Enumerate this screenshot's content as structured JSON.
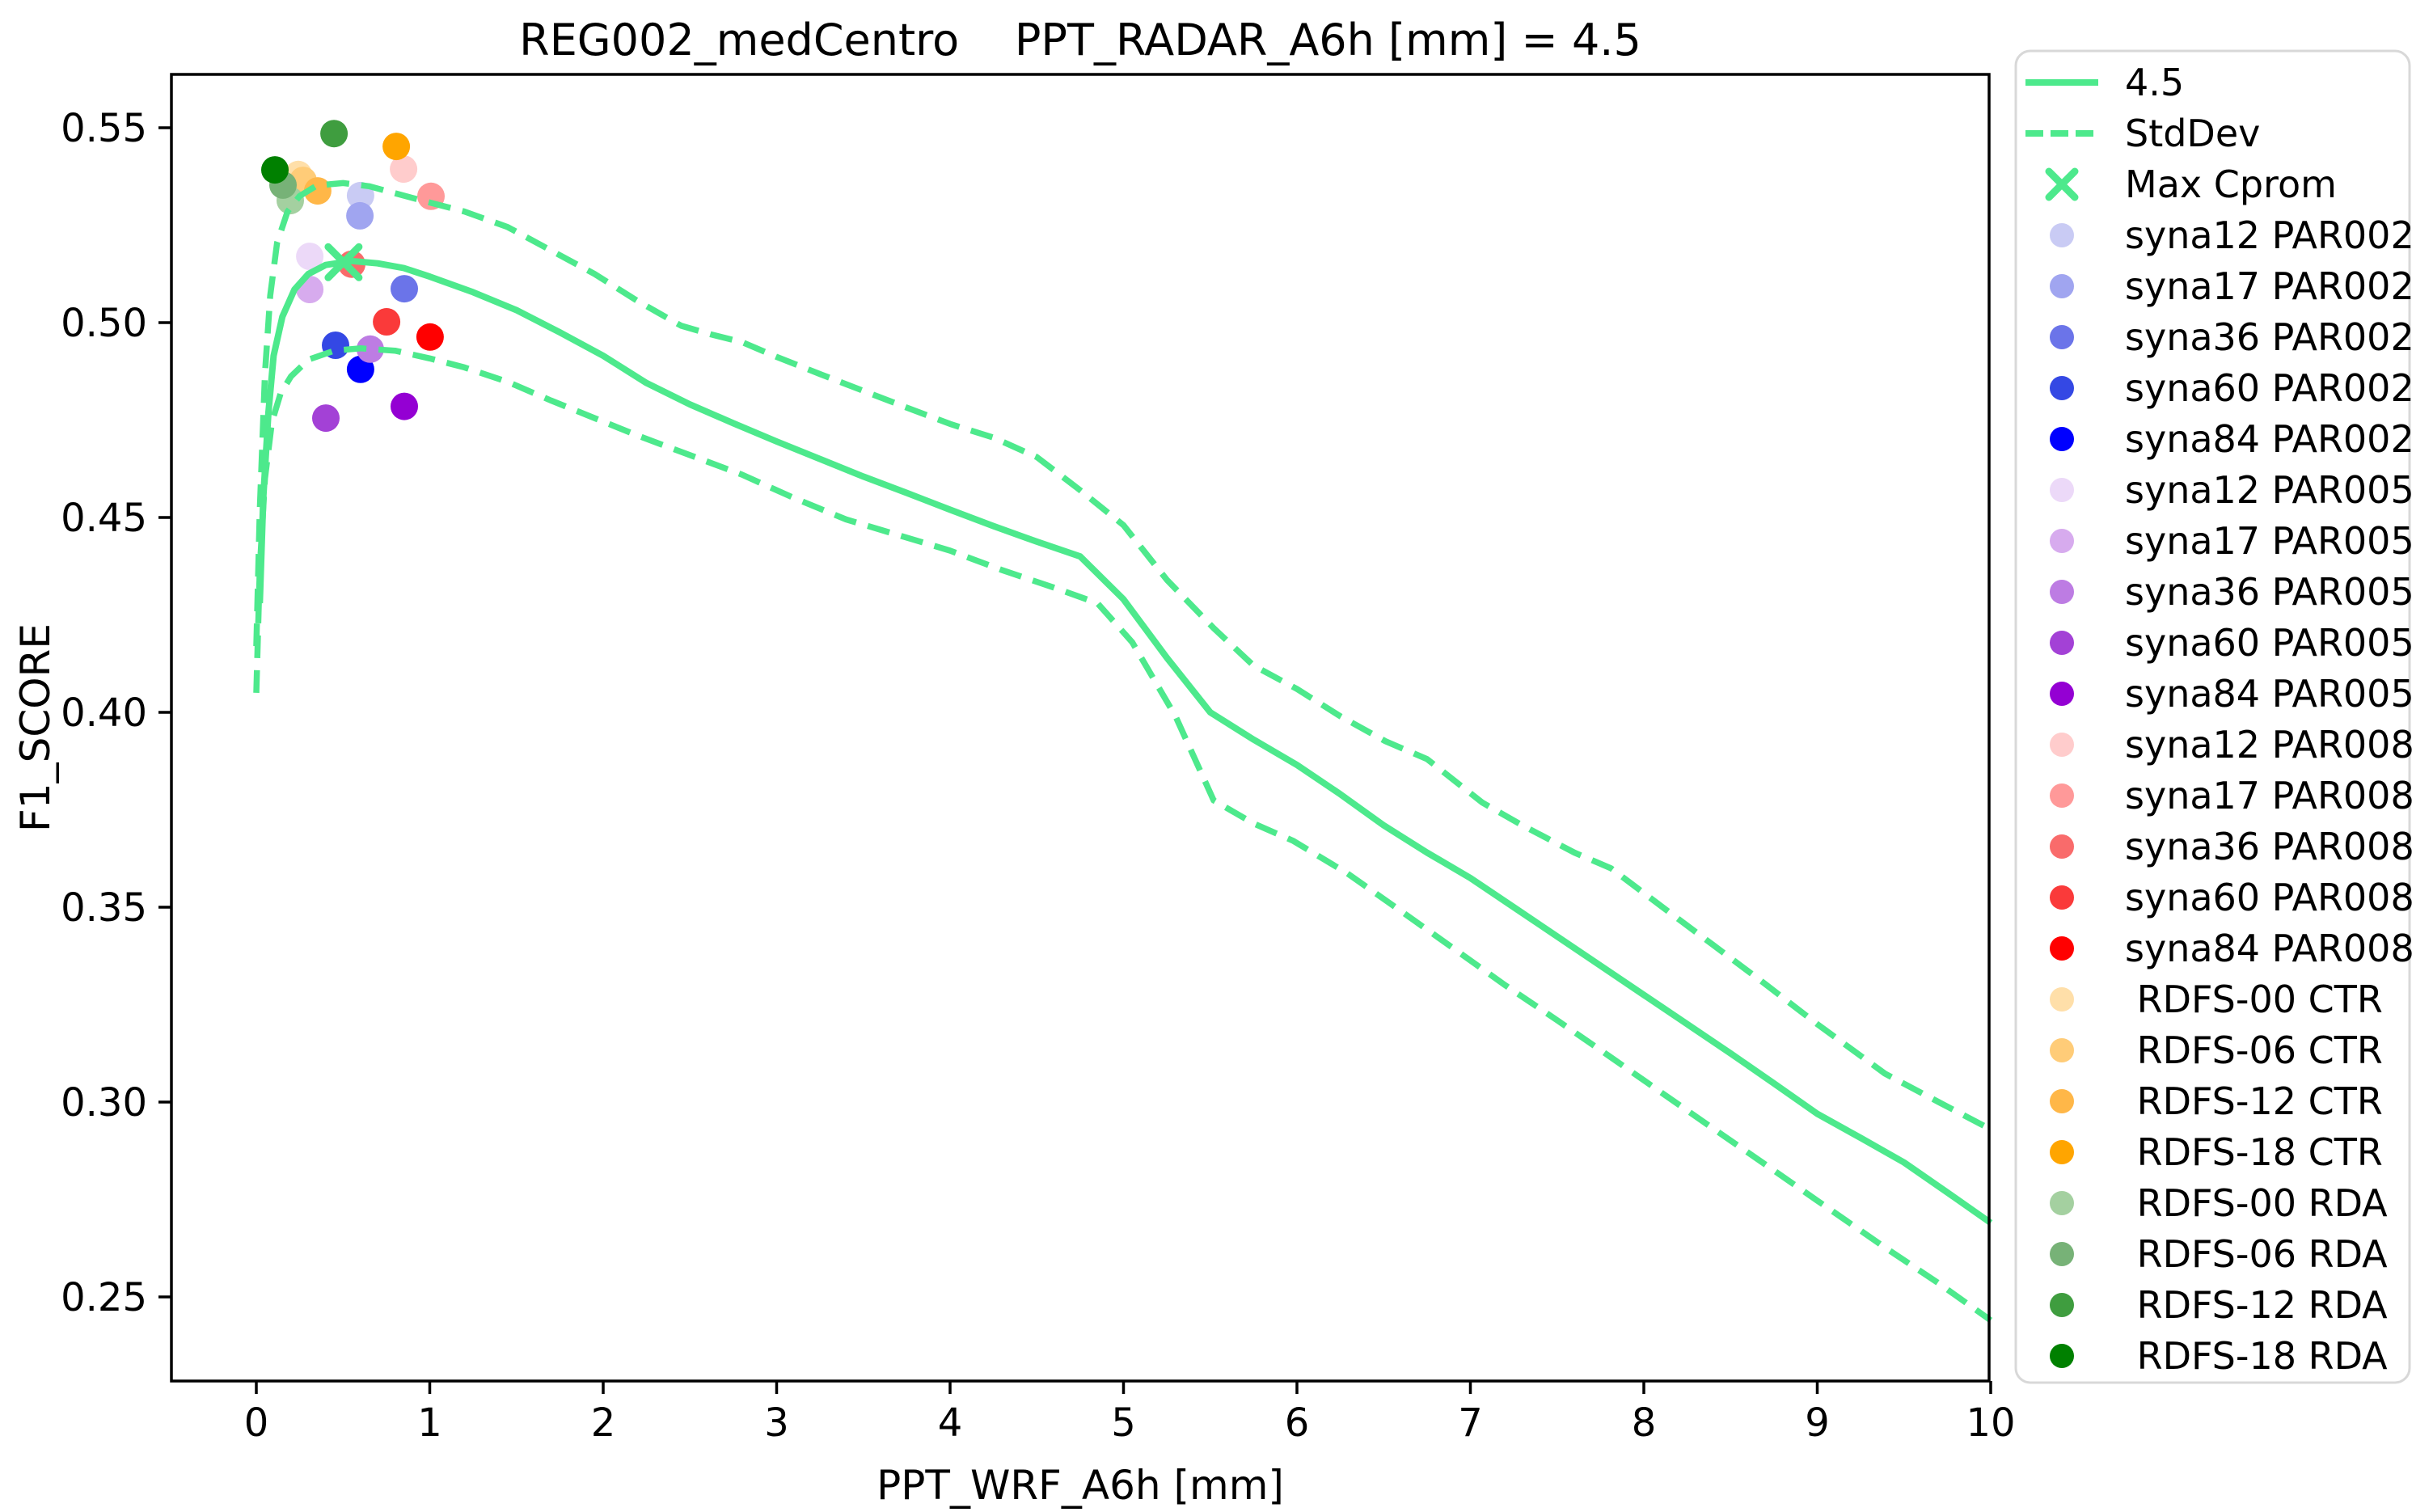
{
  "chart_data": {
    "type": "line+scatter",
    "title": "REG002_medCentro    PPT_RADAR_A6h [mm] = 4.5",
    "xlabel": "PPT_WRF_A6h [mm]",
    "ylabel": "F1_SCORE",
    "xlim": [
      -0.49,
      10.0
    ],
    "ylim": [
      0.2284,
      0.5637
    ],
    "grid": false,
    "legend_position": "outside-right",
    "xticks": [
      "0",
      "1",
      "2",
      "3",
      "4",
      "5",
      "6",
      "7",
      "8",
      "9",
      "10"
    ],
    "xtick_values": [
      0,
      1,
      2,
      3,
      4,
      5,
      6,
      7,
      8,
      9,
      10
    ],
    "yticks": [
      "0.25",
      "0.30",
      "0.35",
      "0.40",
      "0.45",
      "0.50",
      "0.55"
    ],
    "ytick_values": [
      0.25,
      0.3,
      0.35,
      0.4,
      0.45,
      0.5,
      0.55
    ],
    "line_color": "#4de98c",
    "spine_color": "#000000",
    "legend_border_color": "#d8d8d8",
    "mean_line": {
      "name": "4.5",
      "points": [
        [
          0.02,
          0.428
        ],
        [
          0.04,
          0.455
        ],
        [
          0.07,
          0.477
        ],
        [
          0.1,
          0.4915
        ],
        [
          0.15,
          0.5015
        ],
        [
          0.22,
          0.5085
        ],
        [
          0.3,
          0.5125
        ],
        [
          0.4,
          0.5148
        ],
        [
          0.55,
          0.5158
        ],
        [
          0.7,
          0.5152
        ],
        [
          0.85,
          0.514
        ],
        [
          1.0,
          0.5118
        ],
        [
          1.25,
          0.5078
        ],
        [
          1.5,
          0.5032
        ],
        [
          1.75,
          0.4975
        ],
        [
          2.0,
          0.4915
        ],
        [
          2.25,
          0.4845
        ],
        [
          2.5,
          0.479
        ],
        [
          2.75,
          0.4742
        ],
        [
          3.0,
          0.4695
        ],
        [
          3.25,
          0.465
        ],
        [
          3.5,
          0.4605
        ],
        [
          3.75,
          0.4563
        ],
        [
          4.0,
          0.452
        ],
        [
          4.25,
          0.4478
        ],
        [
          4.5,
          0.4438
        ],
        [
          4.75,
          0.44
        ],
        [
          5.0,
          0.429
        ],
        [
          5.25,
          0.414
        ],
        [
          5.5,
          0.4
        ],
        [
          5.75,
          0.393
        ],
        [
          6.0,
          0.3865
        ],
        [
          6.25,
          0.379
        ],
        [
          6.5,
          0.371
        ],
        [
          6.75,
          0.364
        ],
        [
          7.0,
          0.3575
        ],
        [
          7.25,
          0.35
        ],
        [
          7.5,
          0.3425
        ],
        [
          7.75,
          0.335
        ],
        [
          8.0,
          0.3275
        ],
        [
          8.25,
          0.32
        ],
        [
          8.5,
          0.3125
        ],
        [
          8.75,
          0.3048
        ],
        [
          9.0,
          0.297
        ],
        [
          9.25,
          0.2908
        ],
        [
          9.5,
          0.2845
        ],
        [
          9.75,
          0.2768
        ],
        [
          10.0,
          0.269
        ]
      ]
    },
    "std_upper": {
      "name": "StdDev",
      "points": [
        [
          0.0,
          0.417
        ],
        [
          0.02,
          0.452
        ],
        [
          0.05,
          0.487
        ],
        [
          0.08,
          0.507
        ],
        [
          0.12,
          0.5205
        ],
        [
          0.18,
          0.5285
        ],
        [
          0.25,
          0.5325
        ],
        [
          0.35,
          0.5352
        ],
        [
          0.5,
          0.5358
        ],
        [
          0.65,
          0.535
        ],
        [
          0.8,
          0.5332
        ],
        [
          1.0,
          0.5308
        ],
        [
          1.2,
          0.5285
        ],
        [
          1.45,
          0.5245
        ],
        [
          1.7,
          0.5185
        ],
        [
          1.95,
          0.5125
        ],
        [
          2.2,
          0.5055
        ],
        [
          2.45,
          0.4992
        ],
        [
          2.62,
          0.497
        ],
        [
          2.8,
          0.495
        ],
        [
          3.0,
          0.4912
        ],
        [
          3.25,
          0.4868
        ],
        [
          3.5,
          0.4825
        ],
        [
          3.75,
          0.4782
        ],
        [
          4.0,
          0.474
        ],
        [
          4.25,
          0.4705
        ],
        [
          4.5,
          0.4655
        ],
        [
          4.75,
          0.457
        ],
        [
          5.0,
          0.448
        ],
        [
          5.25,
          0.434
        ],
        [
          5.52,
          0.4216
        ],
        [
          5.75,
          0.412
        ],
        [
          6.0,
          0.406
        ],
        [
          6.25,
          0.399
        ],
        [
          6.51,
          0.3926
        ],
        [
          6.75,
          0.388
        ],
        [
          7.07,
          0.3768
        ],
        [
          7.3,
          0.371
        ],
        [
          7.6,
          0.364
        ],
        [
          7.81,
          0.36
        ],
        [
          8.1,
          0.3503
        ],
        [
          8.4,
          0.3403
        ],
        [
          8.7,
          0.3303
        ],
        [
          9.0,
          0.32
        ],
        [
          9.39,
          0.3073
        ],
        [
          9.7,
          0.3
        ],
        [
          10.0,
          0.293
        ]
      ]
    },
    "std_lower": {
      "name": "StdDev",
      "points": [
        [
          0.0,
          0.405
        ],
        [
          0.02,
          0.437
        ],
        [
          0.05,
          0.46
        ],
        [
          0.09,
          0.4745
        ],
        [
          0.14,
          0.4818
        ],
        [
          0.2,
          0.4862
        ],
        [
          0.3,
          0.4905
        ],
        [
          0.45,
          0.4928
        ],
        [
          0.6,
          0.4934
        ],
        [
          0.8,
          0.4928
        ],
        [
          1.0,
          0.4908
        ],
        [
          1.2,
          0.4885
        ],
        [
          1.45,
          0.4848
        ],
        [
          1.7,
          0.48
        ],
        [
          1.95,
          0.4755
        ],
        [
          2.2,
          0.471
        ],
        [
          2.5,
          0.466
        ],
        [
          2.8,
          0.461
        ],
        [
          3.1,
          0.455
        ],
        [
          3.4,
          0.4495
        ],
        [
          3.7,
          0.4455
        ],
        [
          4.0,
          0.4415
        ],
        [
          4.3,
          0.4365
        ],
        [
          4.6,
          0.432
        ],
        [
          4.85,
          0.428
        ],
        [
          5.05,
          0.418
        ],
        [
          5.3,
          0.399
        ],
        [
          5.52,
          0.3774
        ],
        [
          5.75,
          0.3715
        ],
        [
          5.98,
          0.367
        ],
        [
          6.29,
          0.3587
        ],
        [
          6.6,
          0.349
        ],
        [
          6.9,
          0.3395
        ],
        [
          7.2,
          0.33
        ],
        [
          7.5,
          0.321
        ],
        [
          7.8,
          0.3118
        ],
        [
          8.1,
          0.3025
        ],
        [
          8.4,
          0.2932
        ],
        [
          8.7,
          0.284
        ],
        [
          9.0,
          0.2747
        ],
        [
          9.39,
          0.2627
        ],
        [
          9.7,
          0.2535
        ],
        [
          10.0,
          0.244
        ]
      ]
    },
    "max_cprom": {
      "name": "Max Cprom",
      "x": 0.503,
      "y": 0.5155
    },
    "scatter": [
      {
        "label": "syna12 PAR002",
        "color": "#c9cbf4",
        "x": 0.601,
        "y": 0.5326
      },
      {
        "label": "syna17 PAR002",
        "color": "#a0a5f0",
        "x": 0.597,
        "y": 0.5274
      },
      {
        "label": "syna36 PAR002",
        "color": "#6b74e9",
        "x": 0.853,
        "y": 0.5087
      },
      {
        "label": "syna60 PAR002",
        "color": "#3448e4",
        "x": 0.457,
        "y": 0.4942
      },
      {
        "label": "syna84 PAR002",
        "color": "#0000ff",
        "x": 0.601,
        "y": 0.488
      },
      {
        "label": "syna12 PAR005",
        "color": "#ecd9f8",
        "x": 0.308,
        "y": 0.517
      },
      {
        "label": "syna17 PAR005",
        "color": "#d7abee",
        "x": 0.308,
        "y": 0.5085
      },
      {
        "label": "syna36 PAR005",
        "color": "#bd7ce3",
        "x": 0.657,
        "y": 0.4932
      },
      {
        "label": "syna60 PAR005",
        "color": "#a341d6",
        "x": 0.401,
        "y": 0.4755
      },
      {
        "label": "syna84 PAR005",
        "color": "#9400d3",
        "x": 0.853,
        "y": 0.4785
      },
      {
        "label": "syna12 PAR008",
        "color": "#ffcccc",
        "x": 0.849,
        "y": 0.5394
      },
      {
        "label": "syna17 PAR008",
        "color": "#ff9999",
        "x": 1.007,
        "y": 0.5324
      },
      {
        "label": "syna36 PAR008",
        "color": "#f96b6b",
        "x": 0.55,
        "y": 0.515
      },
      {
        "label": "syna60 PAR008",
        "color": "#fa3a3a",
        "x": 0.751,
        "y": 0.5002
      },
      {
        "label": "syna84 PAR008",
        "color": "#ff0000",
        "x": 1.002,
        "y": 0.4963
      },
      {
        "label": "RDFS-00 CTR",
        "color": "#ffdfa9",
        "x": 0.242,
        "y": 0.538
      },
      {
        "label": "RDFS-06 CTR",
        "color": "#ffcc78",
        "x": 0.27,
        "y": 0.5365
      },
      {
        "label": "RDFS-12 CTR",
        "color": "#ffb748",
        "x": 0.354,
        "y": 0.5338
      },
      {
        "label": "RDFS-18 CTR",
        "color": "#ffa500",
        "x": 0.807,
        "y": 0.5452
      },
      {
        "label": "RDFS-00 RDA",
        "color": "#a4d0a0",
        "x": 0.196,
        "y": 0.5313
      },
      {
        "label": "RDFS-06 RDA",
        "color": "#77b277",
        "x": 0.154,
        "y": 0.5353
      },
      {
        "label": "RDFS-12 RDA",
        "color": "#3f9d3f",
        "x": 0.448,
        "y": 0.5485
      },
      {
        "label": "RDFS-18 RDA",
        "color": "#008000",
        "x": 0.107,
        "y": 0.5392
      }
    ],
    "legend_entries": [
      {
        "marker": "line",
        "color": "#4de98c",
        "label": "4.5"
      },
      {
        "marker": "dashed",
        "color": "#4de98c",
        "label": "StdDev"
      },
      {
        "marker": "x",
        "color": "#4de98c",
        "label": "Max Cprom"
      },
      {
        "marker": "dot",
        "color": "#c9cbf4",
        "label": "syna12 PAR002"
      },
      {
        "marker": "dot",
        "color": "#a0a5f0",
        "label": "syna17 PAR002"
      },
      {
        "marker": "dot",
        "color": "#6b74e9",
        "label": "syna36 PAR002"
      },
      {
        "marker": "dot",
        "color": "#3448e4",
        "label": "syna60 PAR002"
      },
      {
        "marker": "dot",
        "color": "#0000ff",
        "label": "syna84 PAR002"
      },
      {
        "marker": "dot",
        "color": "#ecd9f8",
        "label": "syna12 PAR005"
      },
      {
        "marker": "dot",
        "color": "#d7abee",
        "label": "syna17 PAR005"
      },
      {
        "marker": "dot",
        "color": "#bd7ce3",
        "label": "syna36 PAR005"
      },
      {
        "marker": "dot",
        "color": "#a341d6",
        "label": "syna60 PAR005"
      },
      {
        "marker": "dot",
        "color": "#9400d3",
        "label": "syna84 PAR005"
      },
      {
        "marker": "dot",
        "color": "#ffcccc",
        "label": "syna12 PAR008"
      },
      {
        "marker": "dot",
        "color": "#ff9999",
        "label": "syna17 PAR008"
      },
      {
        "marker": "dot",
        "color": "#f96b6b",
        "label": "syna36 PAR008"
      },
      {
        "marker": "dot",
        "color": "#fa3a3a",
        "label": "syna60 PAR008"
      },
      {
        "marker": "dot",
        "color": "#ff0000",
        "label": "syna84 PAR008"
      },
      {
        "marker": "dot",
        "color": "#ffdfa9",
        "label": " RDFS-00 CTR"
      },
      {
        "marker": "dot",
        "color": "#ffcc78",
        "label": " RDFS-06 CTR"
      },
      {
        "marker": "dot",
        "color": "#ffb748",
        "label": " RDFS-12 CTR"
      },
      {
        "marker": "dot",
        "color": "#ffa500",
        "label": " RDFS-18 CTR"
      },
      {
        "marker": "dot",
        "color": "#a4d0a0",
        "label": " RDFS-00 RDA"
      },
      {
        "marker": "dot",
        "color": "#77b277",
        "label": " RDFS-06 RDA"
      },
      {
        "marker": "dot",
        "color": "#3f9d3f",
        "label": " RDFS-12 RDA"
      },
      {
        "marker": "dot",
        "color": "#008000",
        "label": " RDFS-18 RDA"
      }
    ]
  }
}
